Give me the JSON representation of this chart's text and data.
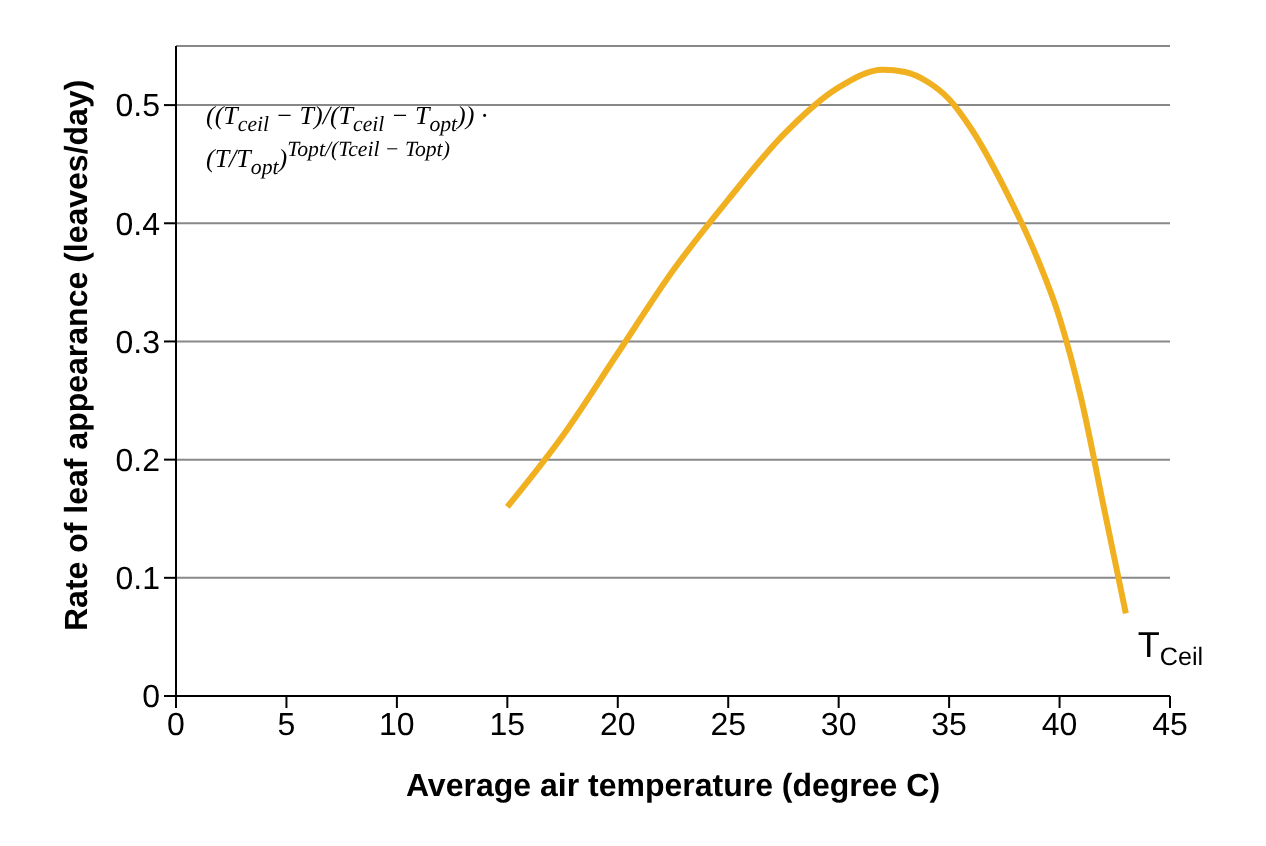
{
  "chart_data": {
    "type": "line",
    "xlabel": "Average air temperature (degree C)",
    "ylabel": "Rate of leaf appearance (leaves/day)",
    "xlim": [
      0,
      45
    ],
    "xticks": [
      0,
      5,
      10,
      15,
      20,
      25,
      30,
      35,
      40,
      45
    ],
    "ylim": [
      0,
      0.55
    ],
    "yticks": [
      0,
      0.1,
      0.2,
      0.3,
      0.4,
      0.5
    ],
    "grid": "y",
    "legend": false,
    "marker": "none",
    "line_style": "solid",
    "series": [
      {
        "color": "#f0b020",
        "x": [
          15,
          17.5,
          20,
          22.5,
          25,
          27.5,
          30,
          32,
          33,
          34,
          35,
          36,
          37.5,
          39,
          40,
          41,
          42,
          43
        ],
        "values": [
          0.16,
          0.22,
          0.29,
          0.36,
          0.42,
          0.475,
          0.515,
          0.53,
          0.528,
          0.52,
          0.505,
          0.48,
          0.43,
          0.37,
          0.32,
          0.25,
          0.16,
          0.07
        ]
      }
    ],
    "annotations": [
      "((T$_{ceil}$ − T)/(T$_{ceil}$ − T$_{opt}$)) · (T/T$_{opt}$)$^{Topt/(Tceil − Topt)}$",
      {
        "text": "T$_{Ceil}$",
        "x": 43,
        "y": 0.07
      }
    ]
  }
}
